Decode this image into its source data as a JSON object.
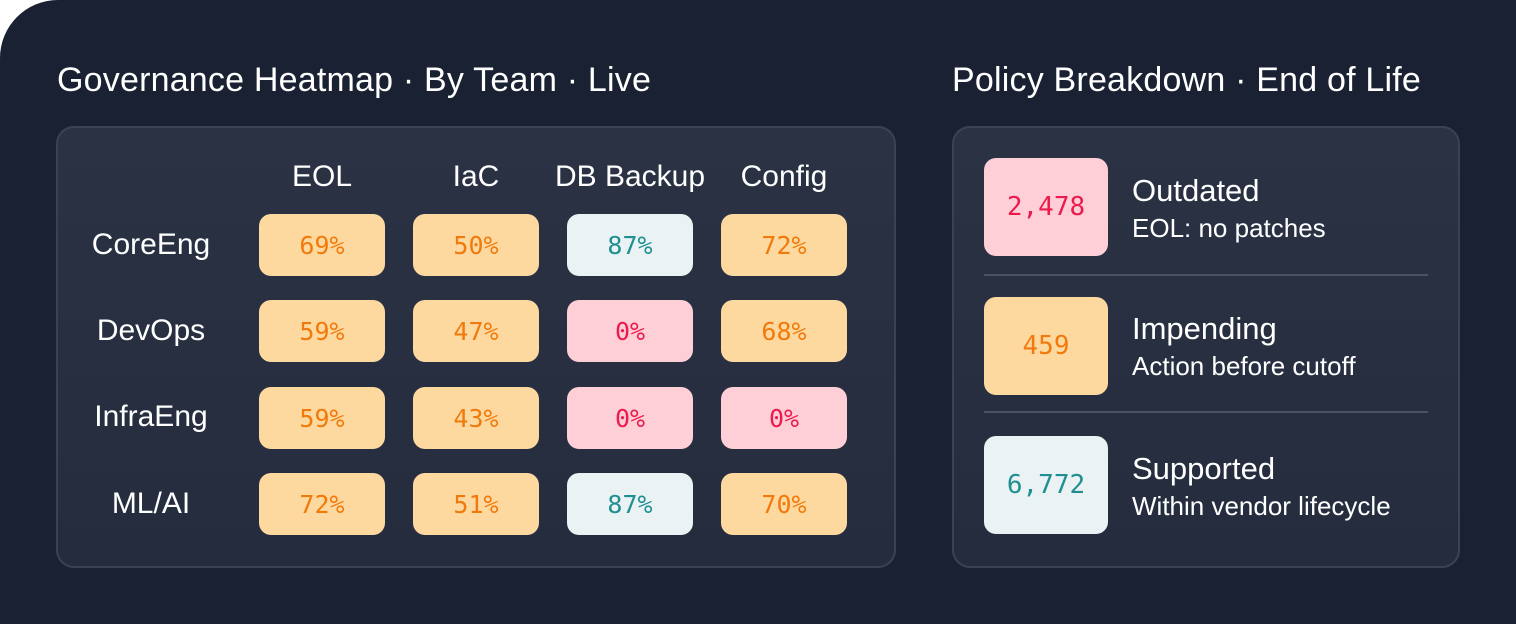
{
  "heatmap": {
    "title": "Governance Heatmap · By Team · Live",
    "columns": [
      "EOL",
      "IaC",
      "DB Backup",
      "Config"
    ],
    "rows": [
      {
        "team": "CoreEng",
        "cells": [
          {
            "value": "69%",
            "level": "warn"
          },
          {
            "value": "50%",
            "level": "warn"
          },
          {
            "value": "87%",
            "level": "good"
          },
          {
            "value": "72%",
            "level": "warn"
          }
        ]
      },
      {
        "team": "DevOps",
        "cells": [
          {
            "value": "59%",
            "level": "warn"
          },
          {
            "value": "47%",
            "level": "warn"
          },
          {
            "value": "0%",
            "level": "bad"
          },
          {
            "value": "68%",
            "level": "warn"
          }
        ]
      },
      {
        "team": "InfraEng",
        "cells": [
          {
            "value": "59%",
            "level": "warn"
          },
          {
            "value": "43%",
            "level": "warn"
          },
          {
            "value": "0%",
            "level": "bad"
          },
          {
            "value": "0%",
            "level": "bad"
          }
        ]
      },
      {
        "team": "ML/AI",
        "cells": [
          {
            "value": "72%",
            "level": "warn"
          },
          {
            "value": "51%",
            "level": "warn"
          },
          {
            "value": "87%",
            "level": "good"
          },
          {
            "value": "70%",
            "level": "warn"
          }
        ]
      }
    ]
  },
  "policy": {
    "title": "Policy Breakdown · End of Life",
    "items": [
      {
        "count": "2,478",
        "label": "Outdated",
        "description": "EOL: no patches",
        "level": "bad"
      },
      {
        "count": "459",
        "label": "Impending",
        "description": "Action before cutoff",
        "level": "warn"
      },
      {
        "count": "6,772",
        "label": "Supported",
        "description": "Within vendor lifecycle",
        "level": "good"
      }
    ]
  },
  "colors": {
    "background": "#1a2133",
    "panel": "#262e40",
    "warn_bg": "#fdd9a0",
    "warn_text": "#f17a0c",
    "good_bg": "#eaf2f4",
    "good_text": "#1f8f92",
    "bad_bg": "#fecfd7",
    "bad_text": "#ec1a4d"
  }
}
